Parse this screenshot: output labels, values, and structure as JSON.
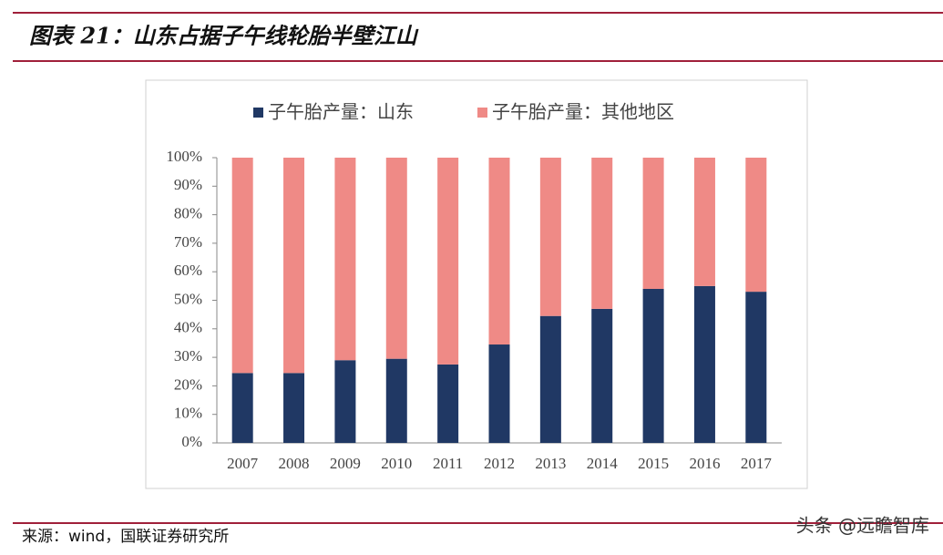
{
  "header": {
    "title": "图表 21：山东占据子午线轮胎半壁江山"
  },
  "chart_data": {
    "type": "stacked_bar",
    "categories": [
      "2007",
      "2008",
      "2009",
      "2010",
      "2011",
      "2012",
      "2013",
      "2014",
      "2015",
      "2016",
      "2017"
    ],
    "series": [
      {
        "name": "子午胎产量：山东",
        "color": "#203864",
        "values": [
          24.5,
          24.5,
          29,
          29.5,
          27.5,
          34.5,
          44.5,
          47,
          54,
          55,
          53
        ]
      },
      {
        "name": "子午胎产量：其他地区",
        "color": "#ef8a86",
        "values": [
          75.5,
          75.5,
          71,
          70.5,
          72.5,
          65.5,
          55.5,
          53,
          46,
          45,
          47
        ]
      }
    ],
    "ylim": [
      0,
      100
    ],
    "yticks": [
      {
        "value": 0,
        "label": "0%"
      },
      {
        "value": 10,
        "label": "10%"
      },
      {
        "value": 20,
        "label": "20%"
      },
      {
        "value": 30,
        "label": "30%"
      },
      {
        "value": 40,
        "label": "40%"
      },
      {
        "value": 50,
        "label": "50%"
      },
      {
        "value": 60,
        "label": "60%"
      },
      {
        "value": 70,
        "label": "70%"
      },
      {
        "value": 80,
        "label": "80%"
      },
      {
        "value": 90,
        "label": "90%"
      },
      {
        "value": 100,
        "label": "100%"
      }
    ],
    "legend": "top"
  },
  "footer": {
    "source": "来源：wind，国联证券研究所",
    "watermark": "头条 @远瞻智库"
  }
}
